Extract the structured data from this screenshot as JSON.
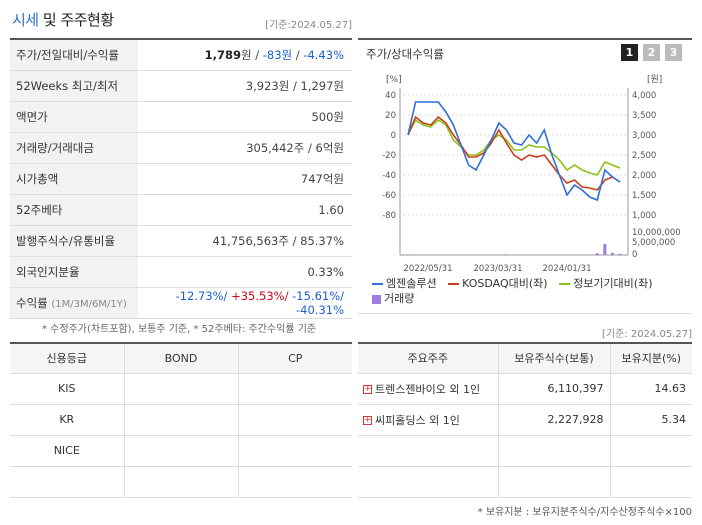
{
  "header": {
    "title_main": "시세",
    "title_rest": " 및 주주현황",
    "base_date": "[기준:2024.05.27]"
  },
  "info": {
    "price_label": "주가/전일대비/수익률",
    "price": "1,789",
    "price_unit": "원",
    "change": "-83원",
    "change_pct": "-4.43%",
    "week52_label": "52Weeks 최고/최저",
    "week52_value": "3,923원 / 1,297원",
    "par_label": "액면가",
    "par_value": "500원",
    "volume_label": "거래량/거래대금",
    "volume_value": "305,442주 / 6억원",
    "mcap_label": "시가총액",
    "mcap_value": "747억원",
    "beta_label": "52주베타",
    "beta_value": "1.60",
    "shares_label": "발행주식수/유통비율",
    "shares_value": "41,756,563주 / 85.37%",
    "foreign_label": "외국인지분율",
    "foreign_value": "0.33%",
    "return_label": "수익률",
    "return_periods": "(1M/3M/6M/1Y)",
    "return_1m": "-12.73%/",
    "return_3m": "+35.53%/",
    "return_6m": "-15.61%/",
    "return_1y": "-40.31%"
  },
  "footnote_left": "* 수정주가(차트포함), 보통주 기준, * 52주베타: 주간수익률 기준",
  "footnote_right": "[기준: 2024.05.27]",
  "chart_panel": {
    "title": "주가/상대수익률",
    "tabs": [
      "1",
      "2",
      "3"
    ],
    "left_unit": "[%]",
    "right_unit": "[원]",
    "legend": [
      "엠젠솔루션",
      "KOSDAQ대비(좌)",
      "정보기기대비(좌)",
      "거래량"
    ]
  },
  "chart_data": {
    "type": "line",
    "x_labels": [
      "2022/05/31",
      "2023/03/31",
      "2024/01/31"
    ],
    "y_left_ticks": [
      40,
      20,
      0,
      -20,
      -40,
      -60,
      -80
    ],
    "y_right_ticks": [
      "4,000",
      "3,500",
      "3,000",
      "2,500",
      "2,000",
      "1,500",
      "1,000"
    ],
    "volume_ticks": [
      "10,000,000",
      "5,000,000",
      "0"
    ],
    "ylim_left": [
      -80,
      40
    ],
    "ylim_right": [
      1000,
      4000
    ],
    "colors": {
      "price": "#2f6fd8",
      "kosdaq": "#c8401a",
      "sector": "#8cc21a",
      "volume": "#a27be0"
    },
    "series": [
      {
        "name": "엠젠솔루션",
        "values": [
          0,
          33,
          33,
          33,
          33,
          23,
          10,
          -10,
          -30,
          -35,
          -20,
          -5,
          12,
          5,
          -8,
          -10,
          0,
          -8,
          5,
          -20,
          -40,
          -60,
          -50,
          -55,
          -62,
          -65,
          -35,
          -42,
          -47
        ]
      },
      {
        "name": "KOSDAQ대비(좌)",
        "values": [
          0,
          18,
          12,
          10,
          18,
          12,
          0,
          -10,
          -22,
          -22,
          -18,
          -8,
          5,
          -8,
          -20,
          -25,
          -20,
          -22,
          -20,
          -30,
          -40,
          -48,
          -45,
          -52,
          -53,
          -55,
          -45,
          -42,
          -47
        ]
      },
      {
        "name": "정보기기대비(좌)",
        "values": [
          0,
          15,
          10,
          8,
          15,
          10,
          -5,
          -12,
          -20,
          -20,
          -15,
          -5,
          0,
          -5,
          -15,
          -15,
          -10,
          -12,
          -12,
          -18,
          -25,
          -35,
          -30,
          -35,
          -38,
          -40,
          -27,
          -30,
          -33
        ]
      },
      {
        "name": "거래량",
        "values": [
          0.3,
          0.2,
          0.2,
          0.2,
          0.2,
          0.2,
          0.2,
          0.2,
          0.2,
          0.2,
          0.2,
          0.2,
          0.2,
          0.3,
          0.2,
          0.2,
          0.2,
          0.2,
          0.2,
          0.2,
          0.2,
          0.2,
          0.2,
          0.2,
          0.2,
          0.8,
          5.0,
          1.0,
          0.5
        ]
      }
    ]
  },
  "credit": {
    "headers": [
      "신용등급",
      "BOND",
      "CP"
    ],
    "rows": [
      [
        "KIS",
        "",
        ""
      ],
      [
        "KR",
        "",
        ""
      ],
      [
        "NICE",
        "",
        ""
      ],
      [
        "",
        "",
        ""
      ]
    ]
  },
  "holders": {
    "headers": [
      "주요주주",
      "보유주식수(보통)",
      "보유지분(%)"
    ],
    "rows": [
      {
        "name": "트렌스젠바이오 외 1인",
        "shares": "6,110,397",
        "pct": "14.63"
      },
      {
        "name": "씨피홀딩스 외 1인",
        "shares": "2,227,928",
        "pct": "5.34"
      },
      {
        "name": "",
        "shares": "",
        "pct": ""
      },
      {
        "name": "",
        "shares": "",
        "pct": ""
      }
    ]
  },
  "bottom_note": "* 보유지분 : 보유지분주식수/지수산정주식수×100"
}
